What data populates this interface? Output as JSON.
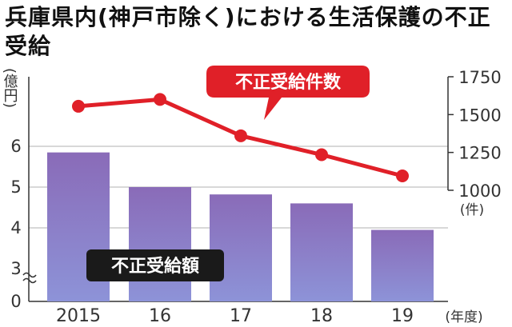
{
  "title": "兵庫県内(神戸市除く)における生活保護の不正受給",
  "chart_data": [
    {
      "type": "bar",
      "series": [
        {
          "name": "不正受給額",
          "values": [
            5.85,
            5.0,
            4.82,
            4.6,
            3.95
          ]
        }
      ],
      "categories": [
        "2015",
        "16",
        "17",
        "18",
        "19"
      ],
      "xlabel": "(年度)",
      "ylabel": "(億円)",
      "yticks": [
        "0",
        "3",
        "4",
        "5",
        "6"
      ],
      "ylim": [
        3,
        6.5
      ],
      "axis_break": true,
      "bar_color_top": "#8a6bb8",
      "bar_color_bottom": "#8d93d8"
    },
    {
      "type": "line",
      "series": [
        {
          "name": "不正受給件数",
          "values": [
            1555,
            1600,
            1360,
            1235,
            1095
          ]
        }
      ],
      "categories": [
        "2015",
        "16",
        "17",
        "18",
        "19"
      ],
      "ylabel": "(件)",
      "yticks": [
        "1000",
        "1250",
        "1500",
        "1750"
      ],
      "ylim": [
        1000,
        1750
      ],
      "color": "#e02028"
    }
  ]
}
